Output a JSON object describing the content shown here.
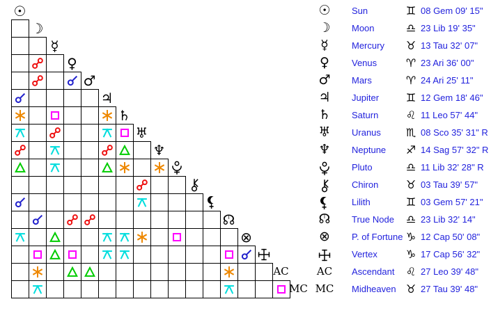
{
  "title": "Natal aspect grid and planetary positions",
  "colors": {
    "text_blue": "#2222dd",
    "glyph_black": "#000000",
    "background": "#ffffff"
  },
  "aspects": {
    "con": {
      "name": "conjunction",
      "color": "#2222cc"
    },
    "opp": {
      "name": "opposition",
      "color": "#ee1111"
    },
    "sex": {
      "name": "sextile",
      "color": "#ee8800"
    },
    "squ": {
      "name": "square",
      "color": "#ff00ff"
    },
    "tri": {
      "name": "trine",
      "color": "#00cc00"
    },
    "qui": {
      "name": "quincunx",
      "color": "#00dddd"
    }
  },
  "planets": [
    {
      "name": "Sun",
      "glyph": "☉",
      "sign": "Gem",
      "sign_glyph": "♊",
      "position": "08 Gem 09' 15\""
    },
    {
      "name": "Moon",
      "glyph": "☽",
      "sign": "Lib",
      "sign_glyph": "♎",
      "position": "23 Lib 19' 35\""
    },
    {
      "name": "Mercury",
      "glyph": "☿",
      "sign": "Tau",
      "sign_glyph": "♉",
      "position": "13 Tau 32' 07\""
    },
    {
      "name": "Venus",
      "glyph": "♀",
      "sign": "Ari",
      "sign_glyph": "♈",
      "position": "23 Ari 36' 00\""
    },
    {
      "name": "Mars",
      "glyph": "♂",
      "sign": "Ari",
      "sign_glyph": "♈",
      "position": "24 Ari 25' 11\""
    },
    {
      "name": "Jupiter",
      "glyph": "♃",
      "sign": "Gem",
      "sign_glyph": "♊",
      "position": "12 Gem 18' 46\""
    },
    {
      "name": "Saturn",
      "glyph": "♄",
      "sign": "Leo",
      "sign_glyph": "♌",
      "position": "11 Leo 57' 44\""
    },
    {
      "name": "Uranus",
      "glyph": "♅",
      "sign": "Sco",
      "sign_glyph": "♏",
      "position": "08 Sco 35' 31\" R",
      "retrograde": true
    },
    {
      "name": "Neptune",
      "glyph": "♆",
      "sign": "Sag",
      "sign_glyph": "♐",
      "position": "14 Sag 57' 32\" R",
      "retrograde": true
    },
    {
      "name": "Pluto",
      "glyph_svg": "pluto",
      "sign": "Lib",
      "sign_glyph": "♎",
      "position": "11 Lib 32' 28\" R",
      "retrograde": true
    },
    {
      "name": "Chiron",
      "glyph_svg": "chiron",
      "sign": "Tau",
      "sign_glyph": "♉",
      "position": "03 Tau 39' 57\""
    },
    {
      "name": "Lilith",
      "glyph_svg": "lilith",
      "sign": "Gem",
      "sign_glyph": "♊",
      "position": "03 Gem 57' 21\""
    },
    {
      "name": "True Node",
      "glyph": "☊",
      "node_t": true,
      "sign": "Lib",
      "sign_glyph": "♎",
      "position": "23 Lib 32' 14\""
    },
    {
      "name": "P. of Fortune",
      "glyph": "⊗",
      "sign": "Cap",
      "sign_glyph": "♑",
      "position": "12 Cap 50' 08\""
    },
    {
      "name": "Vertex",
      "glyph_svg": "vertex",
      "sign": "Cap",
      "sign_glyph": "♑",
      "position": "17 Cap 56' 32\""
    },
    {
      "name": "Ascendant",
      "glyph_text": "AC",
      "sign": "Leo",
      "sign_glyph": "♌",
      "position": "27 Leo 39' 48\""
    },
    {
      "name": "Midheaven",
      "glyph_text": "MC",
      "sign": "Tau",
      "sign_glyph": "♉",
      "position": "27 Tau 39' 48\""
    }
  ],
  "aspect_grid": {
    "grid": [
      [],
      [
        null
      ],
      [
        null,
        null
      ],
      [
        null,
        "opp",
        null
      ],
      [
        null,
        "opp",
        null,
        "con"
      ],
      [
        "con",
        null,
        null,
        null,
        null
      ],
      [
        "sex",
        null,
        "squ",
        null,
        null,
        "sex"
      ],
      [
        "qui",
        null,
        "opp",
        null,
        null,
        "qui",
        "squ"
      ],
      [
        "opp",
        null,
        "qui",
        null,
        null,
        "opp",
        "tri",
        null
      ],
      [
        "tri",
        null,
        "qui",
        null,
        null,
        "tri",
        "sex",
        null,
        "sex"
      ],
      [
        null,
        null,
        null,
        null,
        null,
        null,
        null,
        "opp",
        null,
        null
      ],
      [
        "con",
        null,
        null,
        null,
        null,
        null,
        null,
        "qui",
        null,
        null,
        null
      ],
      [
        null,
        "con",
        null,
        "opp",
        "opp",
        null,
        null,
        null,
        null,
        null,
        null,
        null
      ],
      [
        "qui",
        null,
        "tri",
        null,
        null,
        "qui",
        "qui",
        "sex",
        null,
        "squ",
        null,
        null,
        null
      ],
      [
        null,
        "squ",
        "tri",
        "squ",
        null,
        "qui",
        "qui",
        null,
        null,
        null,
        null,
        null,
        "squ",
        "con"
      ],
      [
        null,
        "sex",
        null,
        "tri",
        "tri",
        null,
        null,
        null,
        null,
        null,
        null,
        null,
        "sex",
        null,
        null
      ],
      [
        null,
        "qui",
        null,
        null,
        null,
        null,
        null,
        null,
        null,
        null,
        null,
        null,
        "qui",
        null,
        null,
        "squ"
      ]
    ]
  }
}
